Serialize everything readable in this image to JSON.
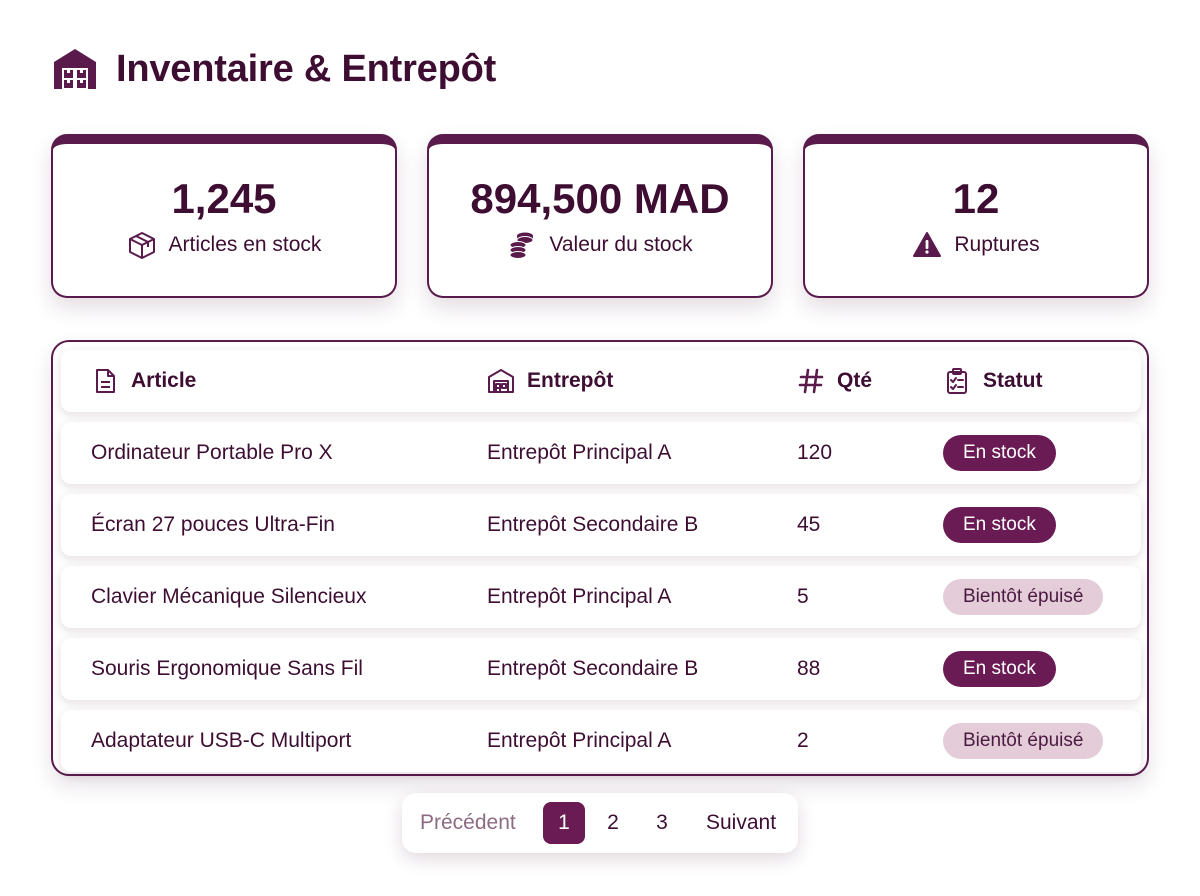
{
  "header": {
    "title": "Inventaire & Entrepôt",
    "icon": "warehouse-icon"
  },
  "stats": [
    {
      "value": "1,245",
      "label": "Articles en stock",
      "icon": "package-icon"
    },
    {
      "value": "894,500 MAD",
      "label": "Valeur du stock",
      "icon": "coins-icon"
    },
    {
      "value": "12",
      "label": "Ruptures",
      "icon": "warning-icon"
    }
  ],
  "table": {
    "columns": [
      {
        "label": "Article",
        "icon": "document-icon"
      },
      {
        "label": "Entrepôt",
        "icon": "warehouse-icon"
      },
      {
        "label": "Qté",
        "icon": "hash-icon"
      },
      {
        "label": "Statut",
        "icon": "clipboard-icon"
      }
    ],
    "rows": [
      {
        "article": "Ordinateur Portable Pro X",
        "warehouse": "Entrepôt Principal A",
        "qty": "120",
        "status": "En stock",
        "status_type": "ok"
      },
      {
        "article": "Écran 27 pouces Ultra-Fin",
        "warehouse": "Entrepôt Secondaire B",
        "qty": "45",
        "status": "En stock",
        "status_type": "ok"
      },
      {
        "article": "Clavier Mécanique Silencieux",
        "warehouse": "Entrepôt Principal A",
        "qty": "5",
        "status": "Bientôt épuisé",
        "status_type": "low"
      },
      {
        "article": "Souris Ergonomique Sans Fil",
        "warehouse": "Entrepôt Secondaire B",
        "qty": "88",
        "status": "En stock",
        "status_type": "ok"
      },
      {
        "article": "Adaptateur USB-C Multiport",
        "warehouse": "Entrepôt Principal A",
        "qty": "2",
        "status": "Bientôt épuisé",
        "status_type": "low"
      }
    ]
  },
  "pagination": {
    "prev": "Précédent",
    "pages": [
      "1",
      "2",
      "3"
    ],
    "current": "1",
    "next": "Suivant"
  },
  "colors": {
    "primary": "#5a1b4c",
    "badge_ok": "#6a1b54",
    "badge_low": "#e4cdd9",
    "text": "#3d0e32"
  }
}
